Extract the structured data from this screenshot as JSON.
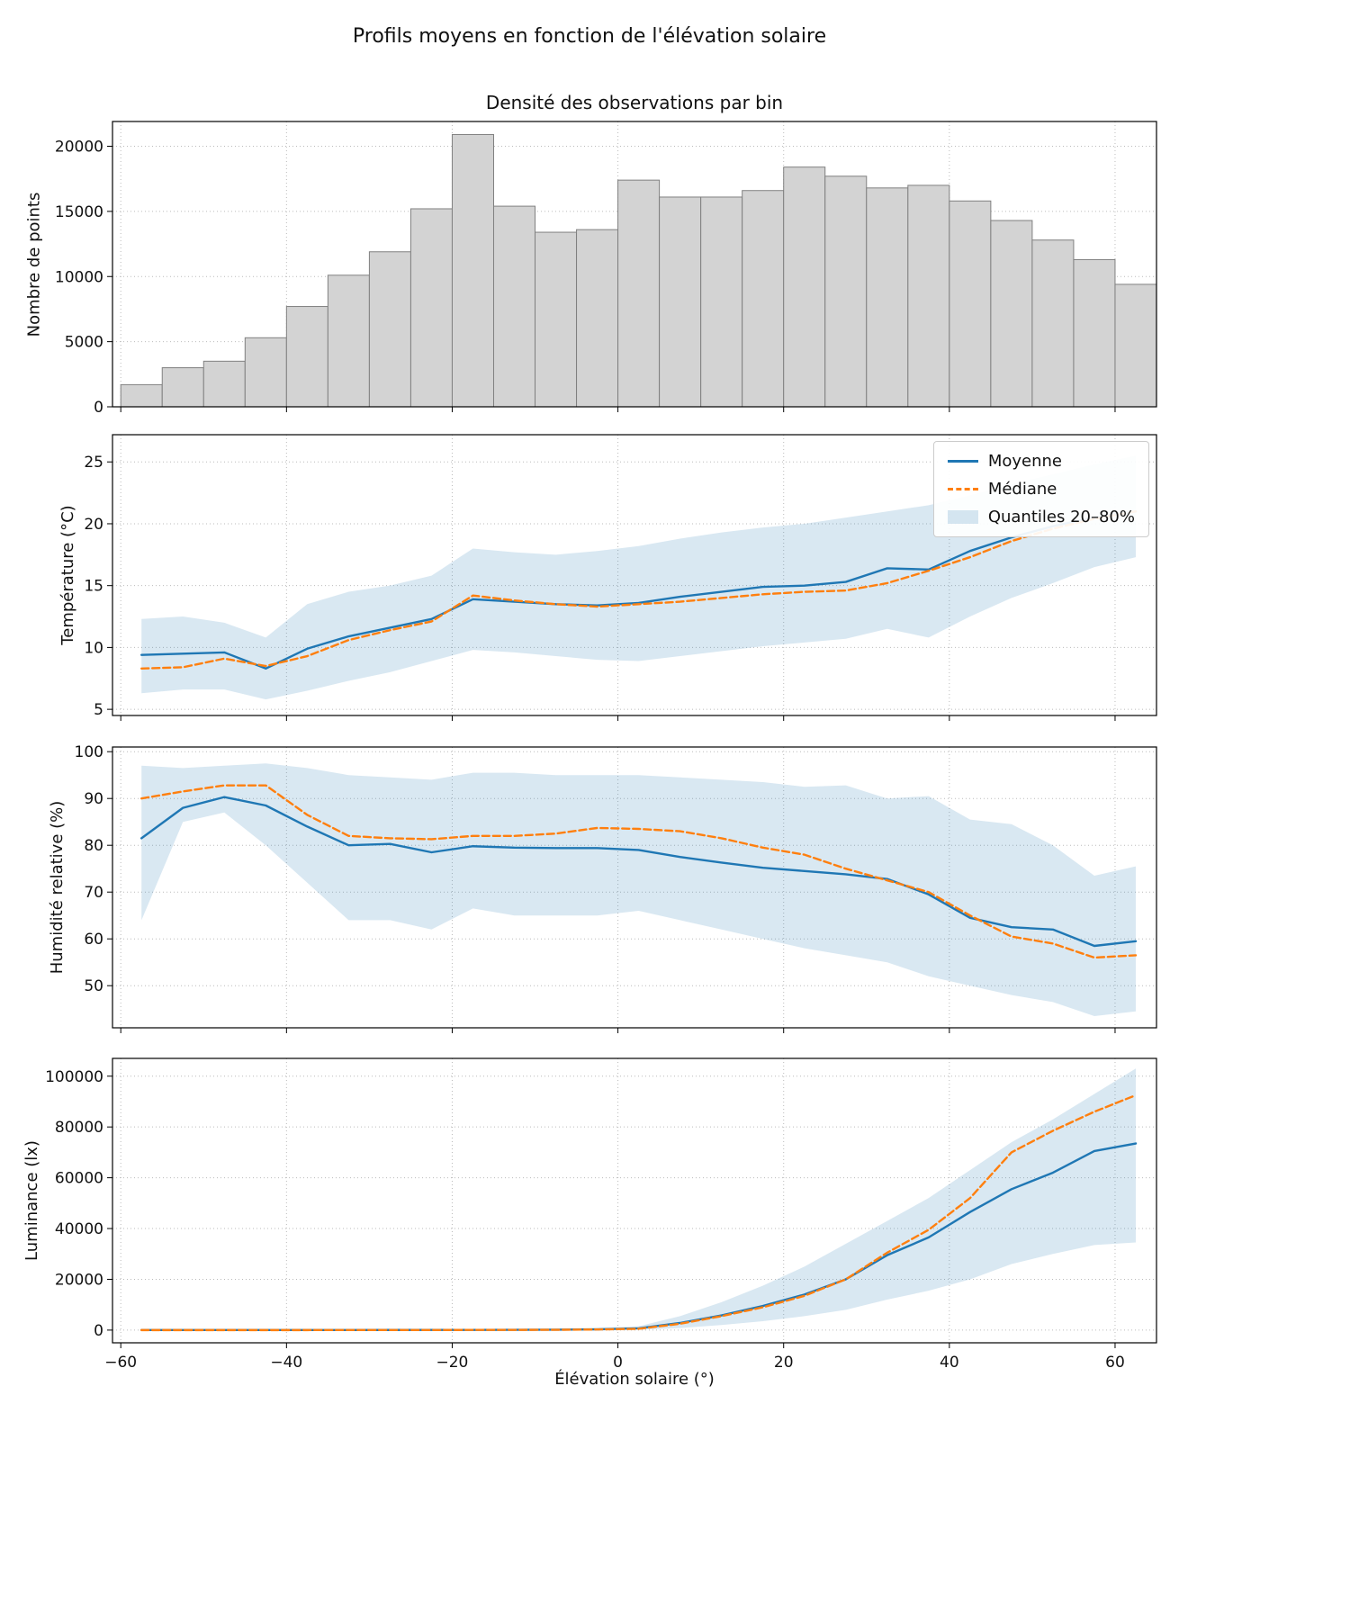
{
  "figure": {
    "suptitle": "Profils moyens en fonction de l'élévation solaire",
    "colors": {
      "mean": "#1f77b4",
      "median": "#ff7f0e",
      "band": "#1f77b4",
      "hist_fill": "#d3d3d3",
      "hist_edge": "#808080",
      "grid": "#b0b0b0",
      "frame": "#000000",
      "text": "#111111"
    }
  },
  "legend": {
    "mean": "Moyenne",
    "median": "Médiane",
    "band": "Quantiles 20–80%"
  },
  "x_axis": {
    "xlim": [
      -61,
      65
    ],
    "tick_values": [
      -60,
      -40,
      -20,
      0,
      20,
      40,
      60
    ],
    "tick_labels": [
      "−60",
      "−40",
      "−20",
      "0",
      "20",
      "40",
      "60"
    ]
  },
  "chart_data": [
    {
      "type": "bar",
      "title": "Densité des observations par bin",
      "ylabel": "Nombre de points",
      "xlabel": "",
      "ylim": [
        0,
        21900
      ],
      "yticks": [
        0,
        5000,
        10000,
        15000,
        20000
      ],
      "bin_edges": [
        -60,
        -55,
        -50,
        -45,
        -40,
        -35,
        -30,
        -25,
        -20,
        -15,
        -10,
        -5,
        0,
        5,
        10,
        15,
        20,
        25,
        30,
        35,
        40,
        45,
        50,
        55,
        60,
        65
      ],
      "values": [
        1700,
        3000,
        3500,
        5300,
        7700,
        10100,
        11900,
        15200,
        20900,
        15400,
        13400,
        13600,
        17400,
        16100,
        16100,
        16600,
        18400,
        17700,
        16800,
        17000,
        15800,
        14300,
        12800,
        11300,
        9400
      ]
    },
    {
      "type": "line",
      "title": "",
      "ylabel": "Température (°C)",
      "xlabel": "",
      "ylim": [
        4.5,
        27.2
      ],
      "yticks": [
        5,
        10,
        15,
        20,
        25
      ],
      "x": [
        -57.5,
        -52.5,
        -47.5,
        -42.5,
        -37.5,
        -32.5,
        -27.5,
        -22.5,
        -17.5,
        -12.5,
        -7.5,
        -2.5,
        2.5,
        7.5,
        12.5,
        17.5,
        22.5,
        27.5,
        32.5,
        37.5,
        42.5,
        47.5,
        52.5,
        57.5,
        62.5
      ],
      "series": [
        {
          "name": "Moyenne",
          "style": "solid",
          "color": "#1f77b4",
          "values": [
            9.4,
            9.5,
            9.6,
            8.3,
            9.9,
            10.9,
            11.6,
            12.3,
            13.9,
            13.7,
            13.5,
            13.4,
            13.6,
            14.1,
            14.5,
            14.9,
            15.0,
            15.3,
            16.4,
            16.3,
            17.8,
            18.9,
            19.8,
            20.5,
            21.0
          ]
        },
        {
          "name": "Médiane",
          "style": "dashed",
          "color": "#ff7f0e",
          "values": [
            8.3,
            8.4,
            9.1,
            8.5,
            9.3,
            10.6,
            11.4,
            12.1,
            14.2,
            13.8,
            13.5,
            13.3,
            13.5,
            13.7,
            14.0,
            14.3,
            14.5,
            14.6,
            15.2,
            16.2,
            17.3,
            18.6,
            19.6,
            20.4,
            21.0
          ]
        }
      ],
      "band": {
        "name": "Quantiles 20–80%",
        "color": "#1f77b4",
        "opacity": 0.17,
        "lower": [
          6.3,
          6.6,
          6.6,
          5.8,
          6.5,
          7.3,
          8.0,
          8.9,
          9.8,
          9.6,
          9.3,
          9.0,
          8.9,
          9.3,
          9.7,
          10.1,
          10.4,
          10.7,
          11.5,
          10.8,
          12.5,
          14.0,
          15.2,
          16.5,
          17.3
        ],
        "upper": [
          12.3,
          12.5,
          12.0,
          10.8,
          13.5,
          14.5,
          15.0,
          15.8,
          18.0,
          17.7,
          17.5,
          17.8,
          18.2,
          18.8,
          19.3,
          19.7,
          20.0,
          20.5,
          21.0,
          21.5,
          22.3,
          23.2,
          24.0,
          24.8,
          25.5
        ]
      }
    },
    {
      "type": "line",
      "title": "",
      "ylabel": "Humidité relative (%)",
      "xlabel": "",
      "ylim": [
        41,
        101
      ],
      "yticks": [
        50,
        60,
        70,
        80,
        90,
        100
      ],
      "x": [
        -57.5,
        -52.5,
        -47.5,
        -42.5,
        -37.5,
        -32.5,
        -27.5,
        -22.5,
        -17.5,
        -12.5,
        -7.5,
        -2.5,
        2.5,
        7.5,
        12.5,
        17.5,
        22.5,
        27.5,
        32.5,
        37.5,
        42.5,
        47.5,
        52.5,
        57.5,
        62.5
      ],
      "series": [
        {
          "name": "Moyenne",
          "style": "solid",
          "color": "#1f77b4",
          "values": [
            81.5,
            88.0,
            90.3,
            88.5,
            84.0,
            80.0,
            80.3,
            78.5,
            79.8,
            79.5,
            79.4,
            79.4,
            79.0,
            77.5,
            76.3,
            75.2,
            74.5,
            73.8,
            72.8,
            69.5,
            64.5,
            62.5,
            62.0,
            58.5,
            59.5
          ]
        },
        {
          "name": "Médiane",
          "style": "dashed",
          "color": "#ff7f0e",
          "values": [
            90.0,
            91.5,
            92.8,
            92.8,
            86.5,
            82.0,
            81.5,
            81.3,
            82.0,
            82.0,
            82.5,
            83.7,
            83.5,
            83.0,
            81.5,
            79.5,
            78.0,
            75.0,
            72.5,
            70.0,
            65.0,
            60.5,
            59.0,
            56.0,
            56.5
          ]
        }
      ],
      "band": {
        "name": "Quantiles 20–80%",
        "color": "#1f77b4",
        "opacity": 0.17,
        "lower": [
          64.0,
          85.0,
          87.0,
          80.0,
          72.0,
          64.0,
          64.0,
          62.0,
          66.5,
          65.0,
          65.0,
          65.0,
          66.0,
          64.0,
          62.0,
          60.0,
          58.0,
          56.5,
          55.0,
          52.0,
          50.0,
          48.0,
          46.5,
          43.5,
          44.5
        ],
        "upper": [
          97.0,
          96.5,
          97.0,
          97.5,
          96.5,
          95.0,
          94.5,
          94.0,
          95.5,
          95.5,
          95.0,
          95.0,
          95.0,
          94.5,
          94.0,
          93.5,
          92.5,
          92.8,
          90.0,
          90.5,
          85.5,
          84.5,
          80.0,
          73.5,
          75.5
        ]
      }
    },
    {
      "type": "line",
      "title": "",
      "ylabel": "Luminance (lx)",
      "xlabel": "Élévation solaire (°)",
      "ylim": [
        -5000,
        107000
      ],
      "yticks": [
        0,
        20000,
        40000,
        60000,
        80000,
        100000
      ],
      "x": [
        -57.5,
        -52.5,
        -47.5,
        -42.5,
        -37.5,
        -32.5,
        -27.5,
        -22.5,
        -17.5,
        -12.5,
        -7.5,
        -2.5,
        2.5,
        7.5,
        12.5,
        17.5,
        22.5,
        27.5,
        32.5,
        37.5,
        42.5,
        47.5,
        52.5,
        57.5,
        62.5
      ],
      "series": [
        {
          "name": "Moyenne",
          "style": "solid",
          "color": "#1f77b4",
          "values": [
            30,
            30,
            30,
            30,
            30,
            40,
            50,
            60,
            80,
            100,
            150,
            300,
            700,
            2800,
            5800,
            9500,
            14000,
            20000,
            29500,
            36500,
            46500,
            55500,
            62000,
            70500,
            73500
          ]
        },
        {
          "name": "Médiane",
          "style": "dashed",
          "color": "#ff7f0e",
          "values": [
            10,
            10,
            10,
            10,
            10,
            20,
            30,
            40,
            60,
            80,
            120,
            250,
            500,
            2500,
            5500,
            9000,
            13500,
            20000,
            30500,
            39500,
            52000,
            70000,
            78500,
            86000,
            92500
          ]
        }
      ],
      "band": {
        "name": "Quantiles 20–80%",
        "color": "#1f77b4",
        "opacity": 0.17,
        "lower": [
          0,
          0,
          0,
          0,
          0,
          0,
          0,
          0,
          10,
          20,
          40,
          80,
          150,
          800,
          2000,
          3500,
          5500,
          8000,
          12000,
          15500,
          20000,
          26000,
          30000,
          33500,
          34500
        ],
        "upper": [
          80,
          80,
          80,
          80,
          90,
          110,
          140,
          180,
          250,
          350,
          500,
          900,
          1500,
          5500,
          11000,
          17500,
          25000,
          34000,
          43000,
          52000,
          63000,
          74000,
          83000,
          93000,
          103000
        ]
      }
    }
  ]
}
